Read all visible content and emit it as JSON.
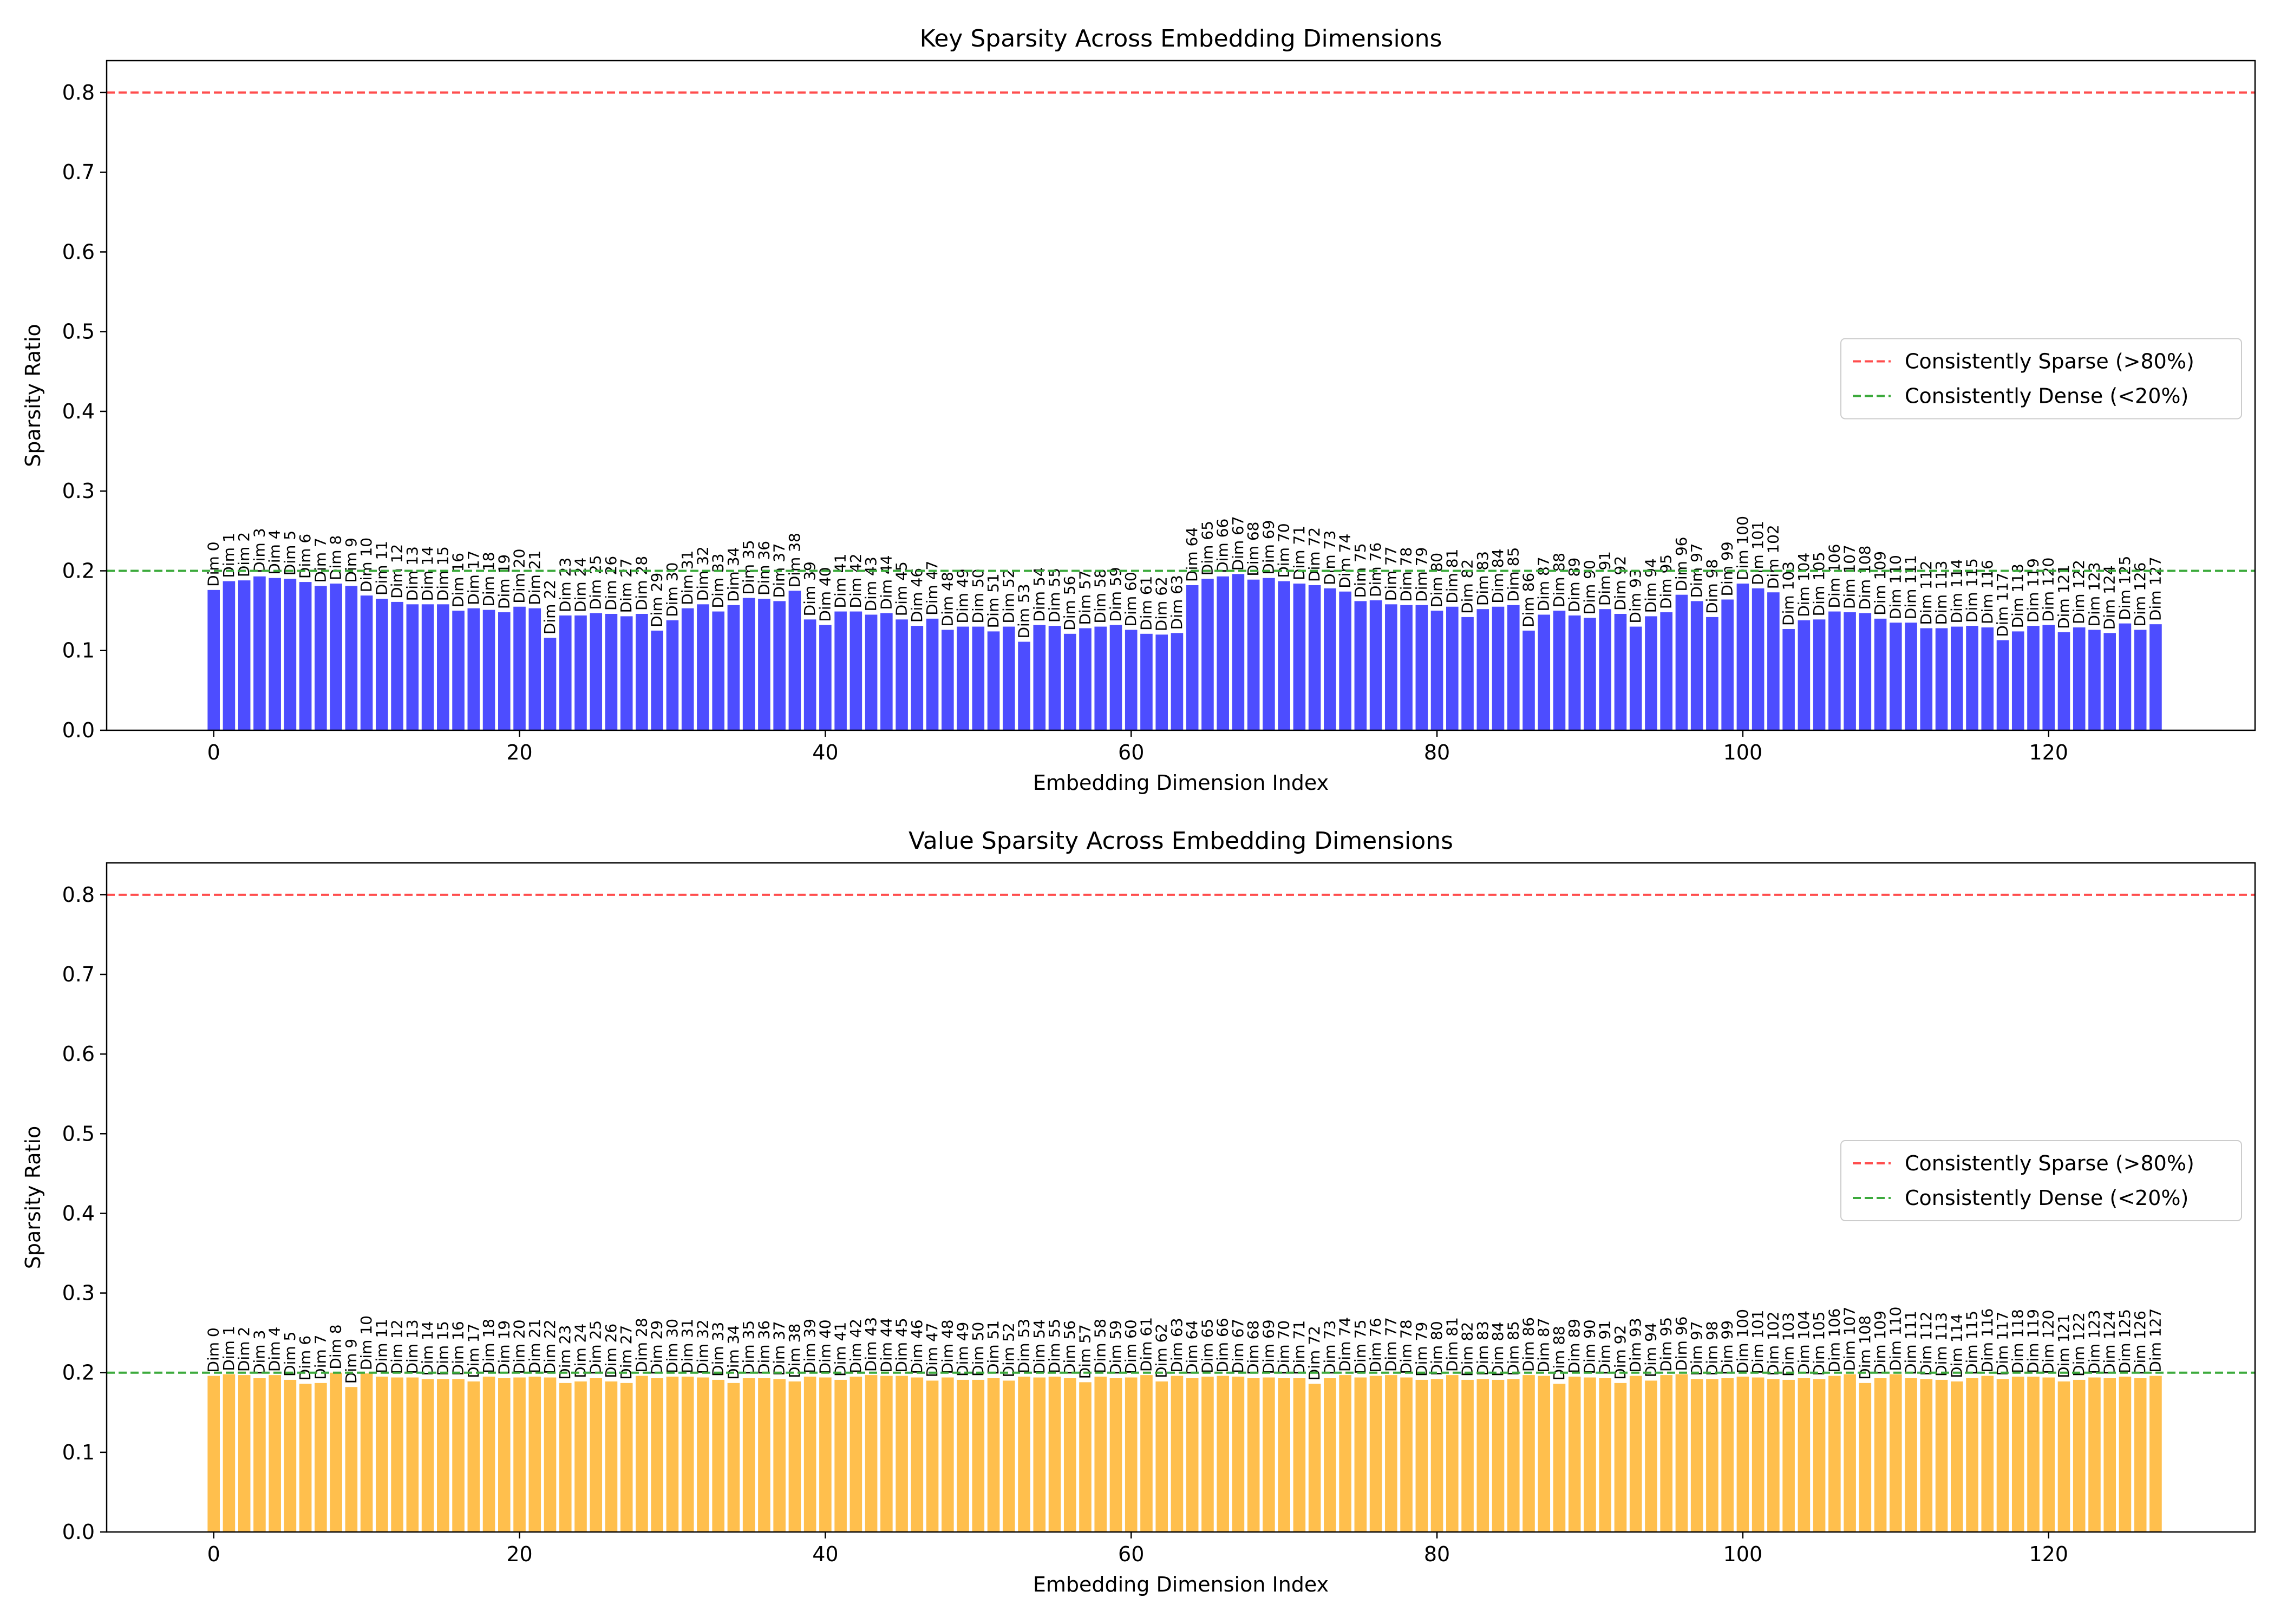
{
  "chart_data": [
    {
      "type": "bar",
      "title": "Key Sparsity Across Embedding Dimensions",
      "xlabel": "Embedding Dimension Index",
      "ylabel": "Sparsity Ratio",
      "xlim": [
        -7,
        133.5
      ],
      "ylim": [
        0,
        0.84
      ],
      "xticks": [
        0,
        20,
        40,
        60,
        80,
        100,
        120
      ],
      "yticks": [
        0.0,
        0.1,
        0.2,
        0.3,
        0.4,
        0.5,
        0.6,
        0.7,
        0.8
      ],
      "bar_color": "#4d4dff",
      "grid": false,
      "legend_position": "center-right",
      "x": [
        0,
        1,
        2,
        3,
        4,
        5,
        6,
        7,
        8,
        9,
        10,
        11,
        12,
        13,
        14,
        15,
        16,
        17,
        18,
        19,
        20,
        21,
        22,
        23,
        24,
        25,
        26,
        27,
        28,
        29,
        30,
        31,
        32,
        33,
        34,
        35,
        36,
        37,
        38,
        39,
        40,
        41,
        42,
        43,
        44,
        45,
        46,
        47,
        48,
        49,
        50,
        51,
        52,
        53,
        54,
        55,
        56,
        57,
        58,
        59,
        60,
        61,
        62,
        63,
        64,
        65,
        66,
        67,
        68,
        69,
        70,
        71,
        72,
        73,
        74,
        75,
        76,
        77,
        78,
        79,
        80,
        81,
        82,
        83,
        84,
        85,
        86,
        87,
        88,
        89,
        90,
        91,
        92,
        93,
        94,
        95,
        96,
        97,
        98,
        99,
        100,
        101,
        102,
        103,
        104,
        105,
        106,
        107,
        108,
        109,
        110,
        111,
        112,
        113,
        114,
        115,
        116,
        117,
        118,
        119,
        120,
        121,
        122,
        123,
        124,
        125,
        126,
        127
      ],
      "values": [
        0.176,
        0.187,
        0.188,
        0.193,
        0.191,
        0.19,
        0.186,
        0.181,
        0.184,
        0.181,
        0.169,
        0.165,
        0.161,
        0.158,
        0.158,
        0.158,
        0.15,
        0.153,
        0.151,
        0.148,
        0.155,
        0.153,
        0.116,
        0.144,
        0.144,
        0.147,
        0.146,
        0.143,
        0.146,
        0.125,
        0.138,
        0.153,
        0.158,
        0.149,
        0.157,
        0.166,
        0.165,
        0.162,
        0.175,
        0.139,
        0.132,
        0.149,
        0.149,
        0.145,
        0.147,
        0.139,
        0.131,
        0.14,
        0.126,
        0.13,
        0.13,
        0.124,
        0.13,
        0.111,
        0.132,
        0.131,
        0.121,
        0.128,
        0.13,
        0.132,
        0.126,
        0.121,
        0.12,
        0.122,
        0.182,
        0.19,
        0.193,
        0.196,
        0.189,
        0.191,
        0.187,
        0.184,
        0.182,
        0.178,
        0.174,
        0.162,
        0.163,
        0.158,
        0.157,
        0.157,
        0.15,
        0.155,
        0.142,
        0.152,
        0.155,
        0.157,
        0.125,
        0.145,
        0.15,
        0.144,
        0.141,
        0.152,
        0.146,
        0.13,
        0.143,
        0.148,
        0.17,
        0.162,
        0.142,
        0.164,
        0.184,
        0.178,
        0.173,
        0.127,
        0.138,
        0.139,
        0.149,
        0.148,
        0.147,
        0.14,
        0.135,
        0.135,
        0.128,
        0.128,
        0.13,
        0.131,
        0.129,
        0.113,
        0.124,
        0.131,
        0.132,
        0.123,
        0.129,
        0.126,
        0.122,
        0.134,
        0.126,
        0.133
      ],
      "bar_labels": [
        "Dim 0",
        "Dim 1",
        "Dim 2",
        "Dim 3",
        "Dim 4",
        "Dim 5",
        "Dim 6",
        "Dim 7",
        "Dim 8",
        "Dim 9",
        "Dim 10",
        "Dim 11",
        "Dim 12",
        "Dim 13",
        "Dim 14",
        "Dim 15",
        "Dim 16",
        "Dim 17",
        "Dim 18",
        "Dim 19",
        "Dim 20",
        "Dim 21",
        "Dim 22",
        "Dim 23",
        "Dim 24",
        "Dim 25",
        "Dim 26",
        "Dim 27",
        "Dim 28",
        "Dim 29",
        "Dim 30",
        "Dim 31",
        "Dim 32",
        "Dim 33",
        "Dim 34",
        "Dim 35",
        "Dim 36",
        "Dim 37",
        "Dim 38",
        "Dim 39",
        "Dim 40",
        "Dim 41",
        "Dim 42",
        "Dim 43",
        "Dim 44",
        "Dim 45",
        "Dim 46",
        "Dim 47",
        "Dim 48",
        "Dim 49",
        "Dim 50",
        "Dim 51",
        "Dim 52",
        "Dim 53",
        "Dim 54",
        "Dim 55",
        "Dim 56",
        "Dim 57",
        "Dim 58",
        "Dim 59",
        "Dim 60",
        "Dim 61",
        "Dim 62",
        "Dim 63",
        "Dim 64",
        "Dim 65",
        "Dim 66",
        "Dim 67",
        "Dim 68",
        "Dim 69",
        "Dim 70",
        "Dim 71",
        "Dim 72",
        "Dim 73",
        "Dim 74",
        "Dim 75",
        "Dim 76",
        "Dim 77",
        "Dim 78",
        "Dim 79",
        "Dim 80",
        "Dim 81",
        "Dim 82",
        "Dim 83",
        "Dim 84",
        "Dim 85",
        "Dim 86",
        "Dim 87",
        "Dim 88",
        "Dim 89",
        "Dim 90",
        "Dim 91",
        "Dim 92",
        "Dim 93",
        "Dim 94",
        "Dim 95",
        "Dim 96",
        "Dim 97",
        "Dim 98",
        "Dim 99",
        "Dim 100",
        "Dim 101",
        "Dim 102",
        "Dim 103",
        "Dim 104",
        "Dim 105",
        "Dim 106",
        "Dim 107",
        "Dim 108",
        "Dim 109",
        "Dim 110",
        "Dim 111",
        "Dim 112",
        "Dim 113",
        "Dim 114",
        "Dim 115",
        "Dim 116",
        "Dim 117",
        "Dim 118",
        "Dim 119",
        "Dim 120",
        "Dim 121",
        "Dim 122",
        "Dim 123",
        "Dim 124",
        "Dim 125",
        "Dim 126",
        "Dim 127"
      ],
      "reference_lines": [
        {
          "label": "Consistently Sparse (>80%)",
          "y": 0.8,
          "color": "#ff4d4d",
          "style": "dashed"
        },
        {
          "label": "Consistently Dense (<20%)",
          "y": 0.2,
          "color": "#3caa3c",
          "style": "dashed"
        }
      ]
    },
    {
      "type": "bar",
      "title": "Value Sparsity Across Embedding Dimensions",
      "xlabel": "Embedding Dimension Index",
      "ylabel": "Sparsity Ratio",
      "xlim": [
        -7,
        133.5
      ],
      "ylim": [
        0,
        0.84
      ],
      "xticks": [
        0,
        20,
        40,
        60,
        80,
        100,
        120
      ],
      "yticks": [
        0.0,
        0.1,
        0.2,
        0.3,
        0.4,
        0.5,
        0.6,
        0.7,
        0.8
      ],
      "bar_color": "#ffbf4d",
      "grid": false,
      "legend_position": "center-right",
      "x": [
        0,
        1,
        2,
        3,
        4,
        5,
        6,
        7,
        8,
        9,
        10,
        11,
        12,
        13,
        14,
        15,
        16,
        17,
        18,
        19,
        20,
        21,
        22,
        23,
        24,
        25,
        26,
        27,
        28,
        29,
        30,
        31,
        32,
        33,
        34,
        35,
        36,
        37,
        38,
        39,
        40,
        41,
        42,
        43,
        44,
        45,
        46,
        47,
        48,
        49,
        50,
        51,
        52,
        53,
        54,
        55,
        56,
        57,
        58,
        59,
        60,
        61,
        62,
        63,
        64,
        65,
        66,
        67,
        68,
        69,
        70,
        71,
        72,
        73,
        74,
        75,
        76,
        77,
        78,
        79,
        80,
        81,
        82,
        83,
        84,
        85,
        86,
        87,
        88,
        89,
        90,
        91,
        92,
        93,
        94,
        95,
        96,
        97,
        98,
        99,
        100,
        101,
        102,
        103,
        104,
        105,
        106,
        107,
        108,
        109,
        110,
        111,
        112,
        113,
        114,
        115,
        116,
        117,
        118,
        119,
        120,
        121,
        122,
        123,
        124,
        125,
        126,
        127
      ],
      "values": [
        0.196,
        0.198,
        0.197,
        0.193,
        0.197,
        0.191,
        0.186,
        0.187,
        0.2,
        0.182,
        0.199,
        0.195,
        0.194,
        0.194,
        0.192,
        0.192,
        0.192,
        0.189,
        0.195,
        0.193,
        0.194,
        0.195,
        0.194,
        0.187,
        0.189,
        0.193,
        0.189,
        0.187,
        0.196,
        0.193,
        0.195,
        0.195,
        0.194,
        0.191,
        0.187,
        0.193,
        0.193,
        0.192,
        0.189,
        0.195,
        0.194,
        0.191,
        0.195,
        0.197,
        0.196,
        0.196,
        0.194,
        0.19,
        0.194,
        0.191,
        0.191,
        0.193,
        0.19,
        0.195,
        0.194,
        0.195,
        0.193,
        0.188,
        0.195,
        0.193,
        0.194,
        0.197,
        0.189,
        0.196,
        0.193,
        0.195,
        0.196,
        0.195,
        0.193,
        0.194,
        0.193,
        0.193,
        0.186,
        0.193,
        0.197,
        0.194,
        0.196,
        0.197,
        0.194,
        0.191,
        0.192,
        0.197,
        0.191,
        0.192,
        0.191,
        0.192,
        0.197,
        0.196,
        0.186,
        0.195,
        0.194,
        0.193,
        0.187,
        0.196,
        0.19,
        0.197,
        0.198,
        0.192,
        0.192,
        0.193,
        0.195,
        0.194,
        0.192,
        0.191,
        0.193,
        0.192,
        0.196,
        0.198,
        0.187,
        0.193,
        0.198,
        0.193,
        0.192,
        0.191,
        0.189,
        0.193,
        0.196,
        0.192,
        0.195,
        0.195,
        0.194,
        0.189,
        0.191,
        0.194,
        0.193,
        0.195,
        0.193,
        0.196
      ],
      "bar_labels": [
        "Dim 0",
        "Dim 1",
        "Dim 2",
        "Dim 3",
        "Dim 4",
        "Dim 5",
        "Dim 6",
        "Dim 7",
        "Dim 8",
        "Dim 9",
        "Dim 10",
        "Dim 11",
        "Dim 12",
        "Dim 13",
        "Dim 14",
        "Dim 15",
        "Dim 16",
        "Dim 17",
        "Dim 18",
        "Dim 19",
        "Dim 20",
        "Dim 21",
        "Dim 22",
        "Dim 23",
        "Dim 24",
        "Dim 25",
        "Dim 26",
        "Dim 27",
        "Dim 28",
        "Dim 29",
        "Dim 30",
        "Dim 31",
        "Dim 32",
        "Dim 33",
        "Dim 34",
        "Dim 35",
        "Dim 36",
        "Dim 37",
        "Dim 38",
        "Dim 39",
        "Dim 40",
        "Dim 41",
        "Dim 42",
        "Dim 43",
        "Dim 44",
        "Dim 45",
        "Dim 46",
        "Dim 47",
        "Dim 48",
        "Dim 49",
        "Dim 50",
        "Dim 51",
        "Dim 52",
        "Dim 53",
        "Dim 54",
        "Dim 55",
        "Dim 56",
        "Dim 57",
        "Dim 58",
        "Dim 59",
        "Dim 60",
        "Dim 61",
        "Dim 62",
        "Dim 63",
        "Dim 64",
        "Dim 65",
        "Dim 66",
        "Dim 67",
        "Dim 68",
        "Dim 69",
        "Dim 70",
        "Dim 71",
        "Dim 72",
        "Dim 73",
        "Dim 74",
        "Dim 75",
        "Dim 76",
        "Dim 77",
        "Dim 78",
        "Dim 79",
        "Dim 80",
        "Dim 81",
        "Dim 82",
        "Dim 83",
        "Dim 84",
        "Dim 85",
        "Dim 86",
        "Dim 87",
        "Dim 88",
        "Dim 89",
        "Dim 90",
        "Dim 91",
        "Dim 92",
        "Dim 93",
        "Dim 94",
        "Dim 95",
        "Dim 96",
        "Dim 97",
        "Dim 98",
        "Dim 99",
        "Dim 100",
        "Dim 101",
        "Dim 102",
        "Dim 103",
        "Dim 104",
        "Dim 105",
        "Dim 106",
        "Dim 107",
        "Dim 108",
        "Dim 109",
        "Dim 110",
        "Dim 111",
        "Dim 112",
        "Dim 113",
        "Dim 114",
        "Dim 115",
        "Dim 116",
        "Dim 117",
        "Dim 118",
        "Dim 119",
        "Dim 120",
        "Dim 121",
        "Dim 122",
        "Dim 123",
        "Dim 124",
        "Dim 125",
        "Dim 126",
        "Dim 127"
      ],
      "reference_lines": [
        {
          "label": "Consistently Sparse (>80%)",
          "y": 0.8,
          "color": "#ff4d4d",
          "style": "dashed"
        },
        {
          "label": "Consistently Dense (<20%)",
          "y": 0.2,
          "color": "#3caa3c",
          "style": "dashed"
        }
      ]
    }
  ]
}
